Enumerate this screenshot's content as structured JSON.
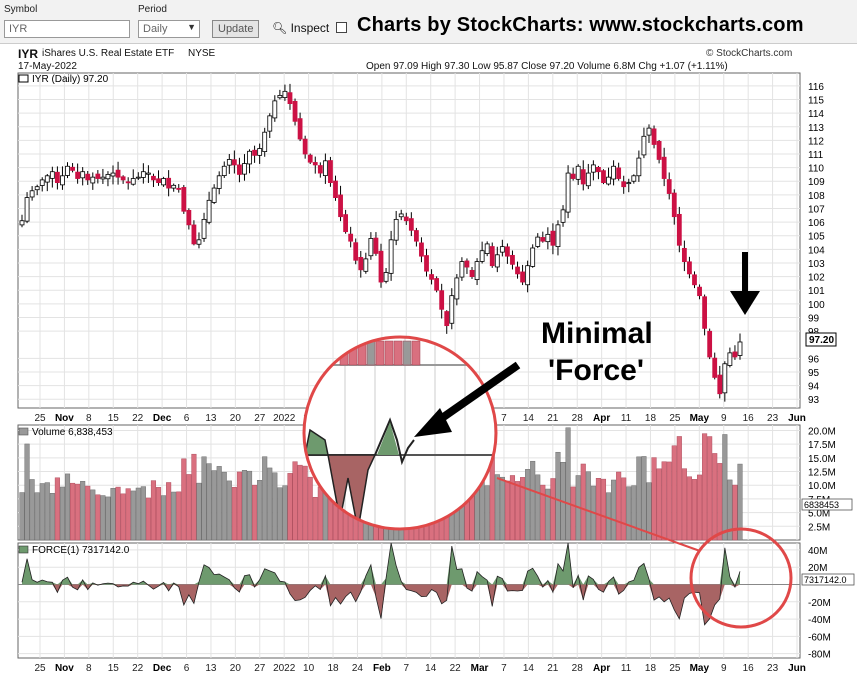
{
  "toolbar": {
    "symbol_label": "Symbol",
    "symbol_value": "IYR",
    "period_label": "Period",
    "period_value": "Daily",
    "update_label": "Update",
    "inspect_label": "Inspect",
    "brand": "Charts by StockCharts:  www.stockcharts.com"
  },
  "header": {
    "ticker": "IYR",
    "name": "iShares U.S. Real Estate ETF",
    "exchange": "NYSE",
    "copyright": "© StockCharts.com",
    "date": "17-May-2022",
    "ohlc": "Open 97.09  High 97.30  Low 95.87  Close 97.20  Volume 6.8M  Chg +1.07 (+1.11%)"
  },
  "colors": {
    "up": "#ffffff",
    "down": "#cc1144",
    "vol_up": "#999999",
    "vol_down": "#d9707f",
    "force_pos": "#6e9a6e",
    "force_neg": "#a86464",
    "callout": "#e04848"
  },
  "chart_data": [
    {
      "type": "candlestick",
      "title": "IYR (Daily) 97.20",
      "last_value": "97.20",
      "ylim": [
        92.5,
        116.8
      ],
      "yticks": [
        "116",
        "115",
        "114",
        "113",
        "112",
        "111",
        "110",
        "109",
        "108",
        "107",
        "106",
        "105",
        "104",
        "103",
        "102",
        "101",
        "100",
        "99",
        "98",
        "96",
        "95",
        "94",
        "93"
      ],
      "x_ticks": [
        "25",
        "Nov",
        "8",
        "15",
        "22",
        "Dec",
        "6",
        "13",
        "20",
        "27",
        "2022",
        "10",
        "18",
        "24",
        "Feb",
        "7",
        "14",
        "22",
        "Mar",
        "7",
        "14",
        "21",
        "28",
        "Apr",
        "11",
        "18",
        "25",
        "May",
        "9",
        "16",
        "23",
        "Jun"
      ],
      "closes": [
        106.1,
        107.8,
        108.3,
        108.6,
        109.1,
        109.4,
        109.7,
        108.9,
        109.4,
        110.1,
        109.8,
        109.2,
        109.7,
        109.1,
        109.3,
        109.2,
        109.3,
        109.5,
        109.6,
        109.3,
        109.1,
        108.9,
        109.2,
        109.3,
        109.7,
        109.6,
        109.1,
        108.9,
        109.2,
        108.5,
        108.7,
        108.4,
        106.8,
        105.8,
        104.4,
        104.7,
        106.2,
        107.6,
        108.5,
        109.4,
        110.1,
        110.6,
        110.2,
        109.5,
        110.3,
        111.2,
        110.9,
        111.4,
        112.6,
        113.8,
        114.9,
        115.3,
        115.6,
        114.7,
        113.4,
        112.1,
        111.0,
        110.4,
        110.2,
        109.6,
        110.5,
        108.9,
        107.8,
        106.4,
        105.3,
        104.6,
        103.2,
        102.5,
        103.3,
        104.8,
        103.7,
        101.6,
        102.3,
        104.7,
        106.2,
        106.6,
        106.1,
        105.4,
        104.6,
        103.5,
        102.4,
        101.8,
        101.0,
        99.6,
        98.4,
        100.6,
        101.9,
        103.1,
        102.7,
        102.0,
        103.1,
        103.9,
        104.4,
        102.8,
        103.6,
        104.2,
        103.5,
        102.9,
        102.2,
        101.6,
        102.8,
        104.1,
        104.9,
        104.6,
        105.1,
        104.3,
        105.8,
        106.9,
        109.6,
        109.2,
        110.1,
        108.8,
        109.6,
        110.2,
        109.7,
        108.9,
        109.3,
        110.1,
        109.2,
        108.6,
        108.9,
        109.4,
        110.7,
        112.3,
        112.9,
        111.7,
        110.6,
        109.2,
        108.1,
        106.4,
        104.3,
        103.1,
        102.2,
        101.4,
        100.6,
        98.2,
        96.1,
        94.6,
        93.4,
        95.6,
        96.4,
        96.1,
        97.2
      ],
      "callout_text": "Minimal\n'Force'"
    },
    {
      "type": "bar",
      "title": "Volume 6,838,453",
      "last_value": "6838453",
      "ylim": [
        0,
        21000000
      ],
      "yticks": [
        "20.0M",
        "17.5M",
        "15.0M",
        "12.5M",
        "10.0M",
        "7.5M",
        "5.0M",
        "2.5M"
      ]
    },
    {
      "type": "area",
      "title": "FORCE(1) 7317142.0",
      "last_value": "7317142.0",
      "ylim": [
        -85,
        48
      ],
      "unit": "M",
      "yticks": [
        "40M",
        "20M",
        "-20M",
        "-40M",
        "-60M",
        "-80M"
      ]
    }
  ]
}
